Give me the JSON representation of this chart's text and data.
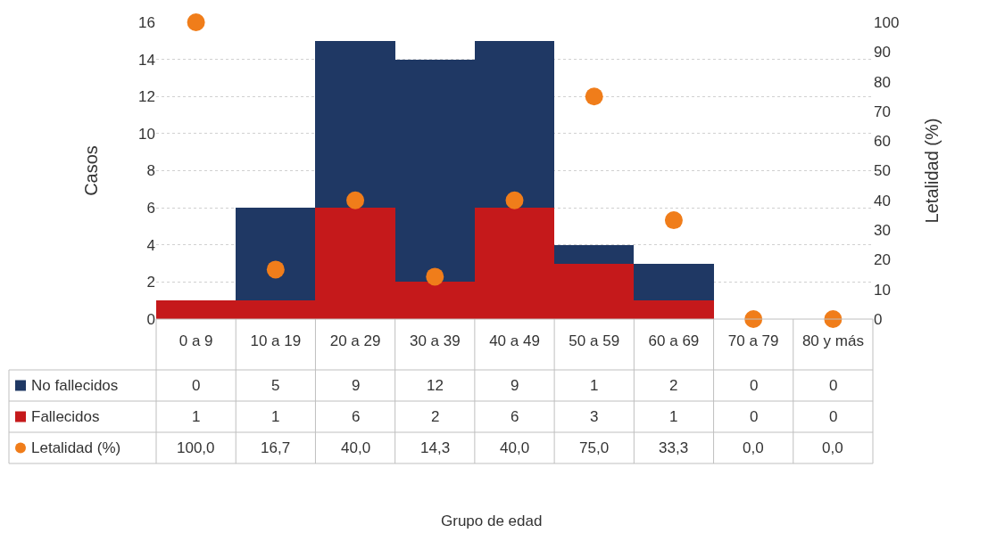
{
  "chart_data": {
    "type": "bar",
    "stacked": true,
    "annotations": [
      "Grupo de edad"
    ],
    "ylabel": "Casos",
    "y2label": "Letalidad (%)",
    "categories": [
      "0 a 9",
      "10 a 19",
      "20 a 29",
      "30 a 39",
      "40 a 49",
      "50 a 59",
      "60 a 69",
      "70 a 79",
      "80 y más"
    ],
    "series": [
      {
        "name": "Fallecidos",
        "color": "#c5191b",
        "values": [
          1,
          1,
          6,
          2,
          6,
          3,
          1,
          0,
          0
        ]
      },
      {
        "name": "No fallecidos",
        "color": "#1f3864",
        "values": [
          0,
          5,
          9,
          12,
          9,
          1,
          2,
          0,
          0
        ]
      },
      {
        "name": "Letalidad (%)",
        "type": "scatter",
        "axis": "y2",
        "marker": "circle",
        "color": "#f07d1a",
        "values": [
          100.0,
          16.7,
          40.0,
          14.3,
          40.0,
          75.0,
          33.3,
          0.0,
          0.0
        ],
        "value_labels": [
          "100,0",
          "16,7",
          "40,0",
          "14,3",
          "40,0",
          "75,0",
          "33,3",
          "0,0",
          "0,0"
        ]
      }
    ],
    "ylim": [
      0,
      16
    ],
    "yticks": [
      0,
      2,
      4,
      6,
      8,
      10,
      12,
      14,
      16
    ],
    "y2lim": [
      0,
      100
    ],
    "y2ticks": [
      0,
      10,
      20,
      30,
      40,
      50,
      60,
      70,
      80,
      90,
      100
    ],
    "grid": "y",
    "legend": "bottom left",
    "data_labels": true
  }
}
